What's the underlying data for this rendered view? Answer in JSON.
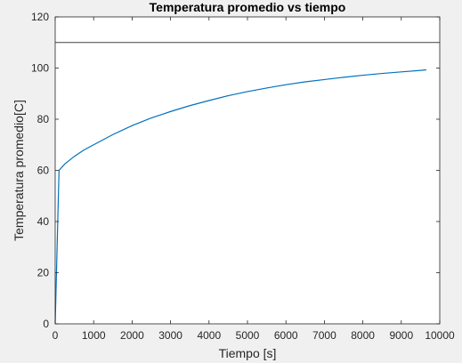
{
  "chart_data": {
    "type": "line",
    "title": "Temperatura promedio vs tiempo",
    "xlabel": "Tiempo [s]",
    "ylabel": "Temperatura promedio[C]",
    "xlim": [
      0,
      10000
    ],
    "ylim": [
      0,
      120
    ],
    "xticks": [
      0,
      1000,
      2000,
      3000,
      4000,
      5000,
      6000,
      7000,
      8000,
      9000,
      10000
    ],
    "yticks": [
      0,
      20,
      40,
      60,
      80,
      100,
      120
    ],
    "grid": false,
    "colors": {
      "series": "#0072bd",
      "reference": "#404040",
      "axes": "#262626",
      "plot_bg": "#ffffff"
    },
    "series": [
      {
        "x": [
          0,
          100,
          250,
          500,
          750,
          1000,
          1500,
          2000,
          2500,
          3000,
          3500,
          4000,
          4500,
          5000,
          5500,
          6000,
          6500,
          7000,
          7500,
          8000,
          8500,
          9000,
          9500,
          9650
        ],
        "y": [
          0,
          60,
          62.5,
          65.5,
          68,
          70,
          74,
          77.5,
          80.5,
          83,
          85.3,
          87.3,
          89.2,
          90.8,
          92.2,
          93.5,
          94.6,
          95.5,
          96.4,
          97.2,
          97.9,
          98.5,
          99.1,
          99.3
        ]
      }
    ],
    "reference_line": {
      "y": 110
    }
  }
}
